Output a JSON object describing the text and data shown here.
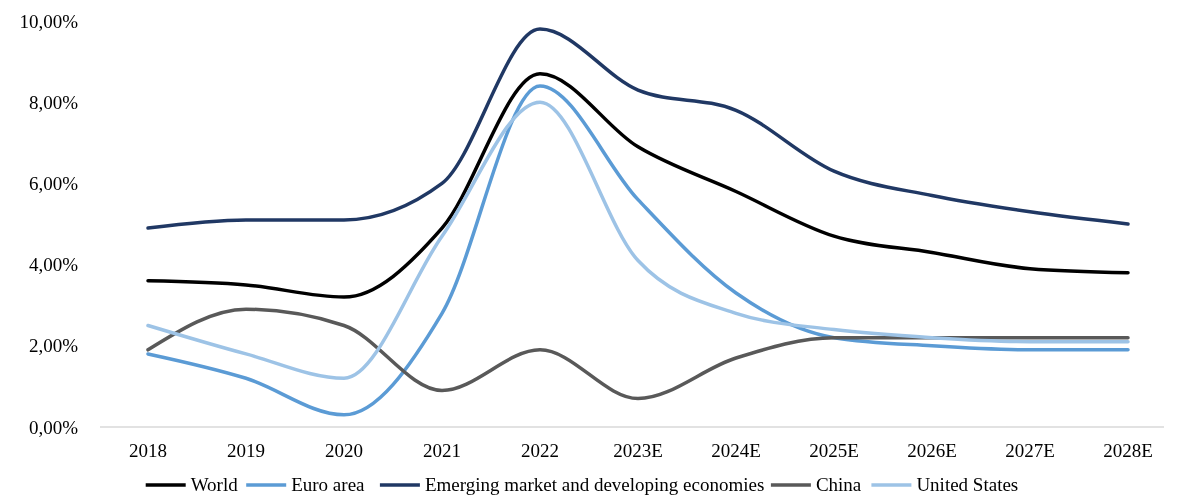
{
  "chart_data": {
    "type": "line",
    "categories": [
      "2018",
      "2019",
      "2020",
      "2021",
      "2022",
      "2023E",
      "2024E",
      "2025E",
      "2026E",
      "2027E",
      "2028E"
    ],
    "ylim": [
      0,
      10
    ],
    "yticks": [
      {
        "value": 0,
        "label": "0,00%"
      },
      {
        "value": 2,
        "label": "2,00%"
      },
      {
        "value": 4,
        "label": "4,00%"
      },
      {
        "value": 6,
        "label": "6,00%"
      },
      {
        "value": 8,
        "label": "8,00%"
      },
      {
        "value": 10,
        "label": "10,00%"
      }
    ],
    "grid": false,
    "legend": "bottom",
    "marker": "none",
    "line_style": "solid",
    "series": [
      {
        "name": "World",
        "color": "#000000",
        "values": [
          3.6,
          3.5,
          3.2,
          4.9,
          8.7,
          6.9,
          5.8,
          4.7,
          4.3,
          3.9,
          3.8
        ]
      },
      {
        "name": "Euro area",
        "color": "#5b9bd5",
        "values": [
          1.8,
          1.2,
          0.3,
          2.8,
          8.4,
          5.6,
          3.3,
          2.2,
          2.0,
          1.9,
          1.9
        ]
      },
      {
        "name": "Emerging market and developing economies",
        "color": "#203864",
        "values": [
          4.9,
          5.1,
          5.1,
          6.0,
          9.8,
          8.3,
          7.8,
          6.3,
          5.7,
          5.3,
          5.0
        ]
      },
      {
        "name": "China",
        "color": "#595959",
        "values": [
          1.9,
          2.9,
          2.5,
          0.9,
          1.9,
          0.7,
          1.7,
          2.2,
          2.2,
          2.2,
          2.2
        ]
      },
      {
        "name": "United States",
        "color": "#9dc3e6",
        "values": [
          2.5,
          1.8,
          1.2,
          4.7,
          8.0,
          4.1,
          2.8,
          2.4,
          2.2,
          2.1,
          2.1
        ]
      }
    ]
  }
}
